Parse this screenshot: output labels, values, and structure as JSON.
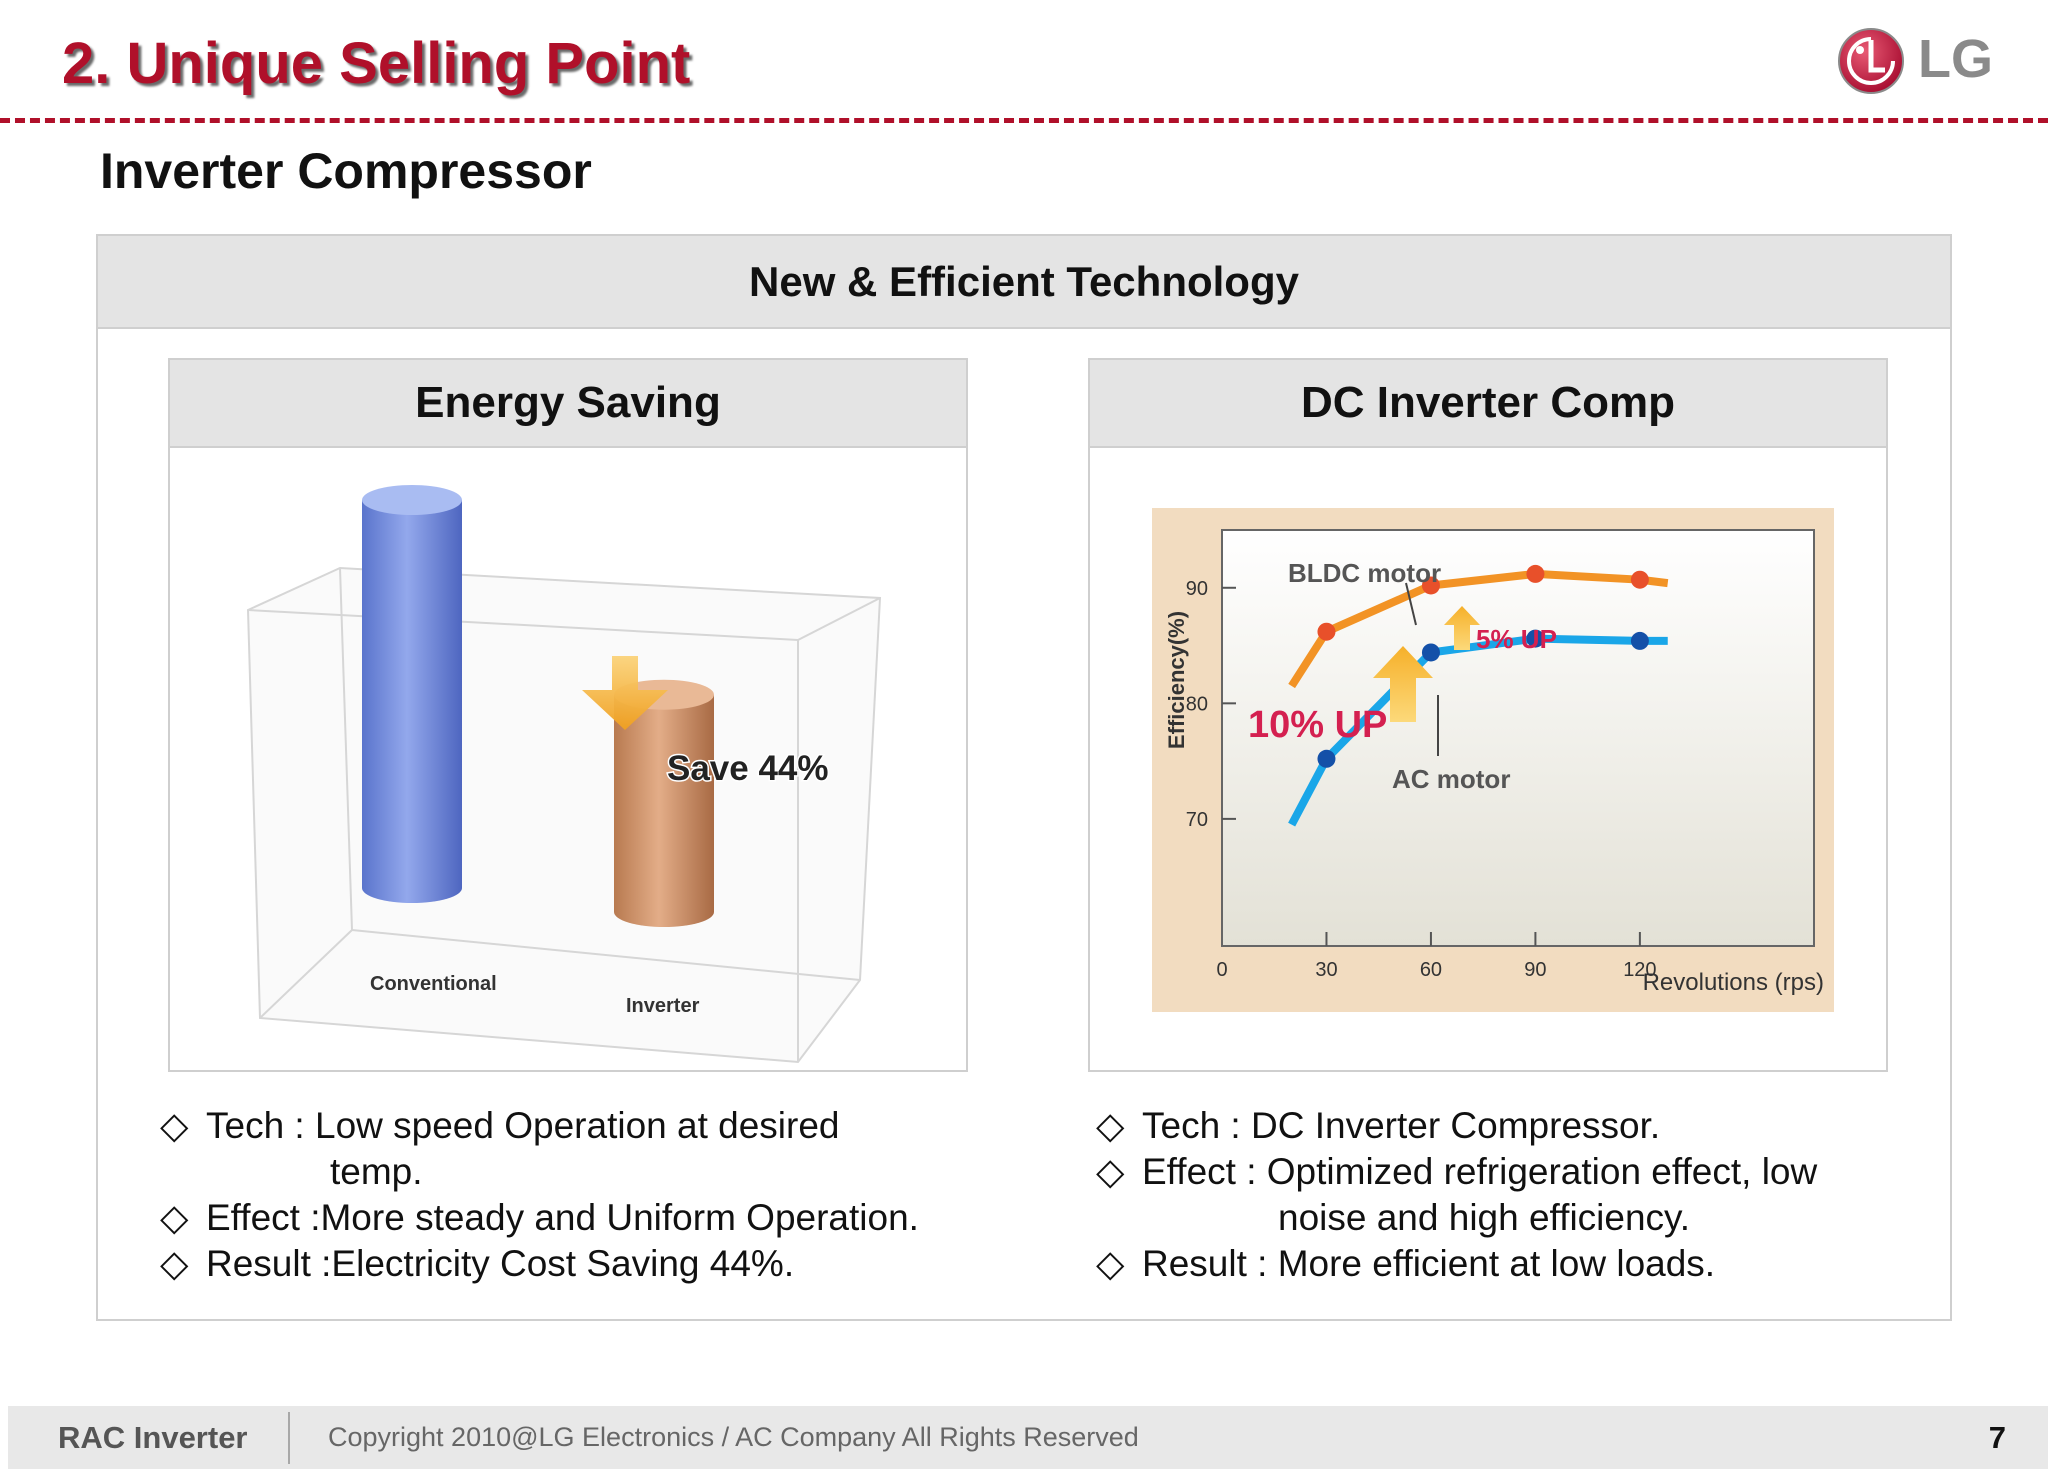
{
  "header": {
    "title": "2. Unique Selling Point",
    "logo_text": "LG",
    "logo_icon": "lg-face-logo",
    "accent_color": "#b0102a"
  },
  "subtitle": "Inverter Compressor",
  "section_header": "New & Efficient Technology",
  "energy_panel": {
    "header": "Energy Saving",
    "chart_data": {
      "type": "bar",
      "categories": [
        "Conventional",
        "Inverter"
      ],
      "values": [
        100,
        56
      ],
      "annotation": "Save 44%",
      "colors": [
        "#6f8bd8",
        "#c98a62"
      ]
    }
  },
  "dc_panel": {
    "header": "DC Inverter Comp",
    "chart_data": {
      "type": "line",
      "ylabel": "Efficiency(%)",
      "xlabel": "Revolutions (rps)",
      "x_ticks": [
        "0",
        "30",
        "60",
        "90",
        "120"
      ],
      "y_ticks": [
        "70",
        "80",
        "90"
      ],
      "xlim": [
        0,
        170
      ],
      "ylim": [
        59,
        95
      ],
      "series": [
        {
          "name": "BLDC motor",
          "color": "#f29325",
          "x": [
            20,
            30,
            60,
            90,
            120,
            128
          ],
          "y": [
            81.5,
            86.2,
            90.2,
            91.2,
            90.7,
            90.4
          ],
          "markers": [
            30,
            60,
            90,
            120
          ]
        },
        {
          "name": "AC motor",
          "color": "#1aa6e8",
          "x": [
            20,
            30,
            60,
            90,
            120,
            128
          ],
          "y": [
            69.5,
            75.2,
            84.4,
            85.6,
            85.4,
            85.4
          ],
          "markers": [
            30,
            60,
            90,
            120
          ]
        }
      ],
      "annotations": [
        "10% UP",
        "5% UP"
      ]
    }
  },
  "left_bullets": {
    "b1": "Tech : Low speed Operation at desired",
    "b1_cont": "temp.",
    "b2": "Effect :More steady and Uniform Operation.",
    "b3": "Result :Electricity Cost Saving 44%."
  },
  "right_bullets": {
    "b1": "Tech : DC Inverter Compressor.",
    "b2": "Effect : Optimized refrigeration effect, low",
    "b2_cont": "noise and high efficiency.",
    "b3": "Result : More efficient at low loads."
  },
  "bullet_symbol": "◇",
  "footer": {
    "brand": "RAC Inverter",
    "copyright": "Copyright 2010@LG Electronics / AC Company All Rights Reserved",
    "page_number": "7"
  }
}
